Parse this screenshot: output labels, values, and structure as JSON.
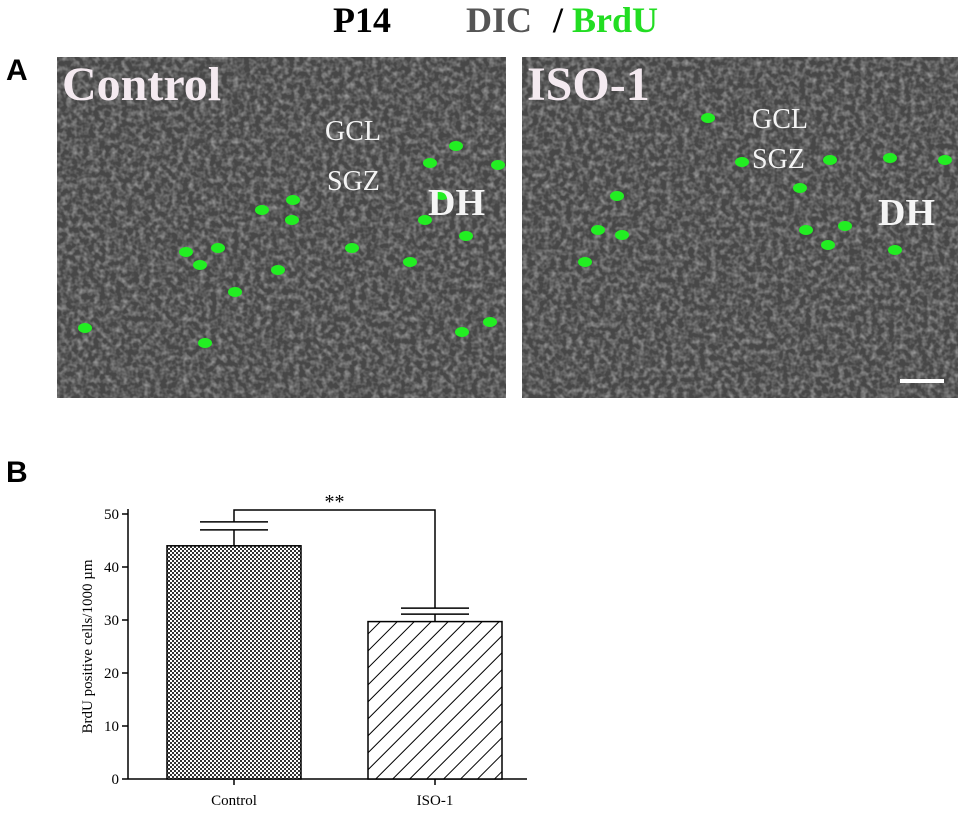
{
  "header": {
    "title": "P14",
    "channel_1": "DIC",
    "separator": "/",
    "channel_2": "BrdU"
  },
  "panel_a": {
    "label": "A",
    "images": [
      {
        "title": "Control",
        "labels": [
          "GCL",
          "SGZ",
          "DH"
        ]
      },
      {
        "title": "ISO-1",
        "labels": [
          "GCL",
          "SGZ",
          "DH"
        ]
      }
    ]
  },
  "chart_data": {
    "type": "bar",
    "panel_label": "B",
    "y_label": "BrdU positive cells/1000 µm",
    "categories": [
      "Control",
      "ISO-1"
    ],
    "values": [
      44,
      29.7
    ],
    "errors": [
      3,
      1.4
    ],
    "significance": "**",
    "ylim": [
      0,
      50
    ],
    "yticks": [
      0,
      10,
      20,
      30,
      40,
      50
    ]
  }
}
